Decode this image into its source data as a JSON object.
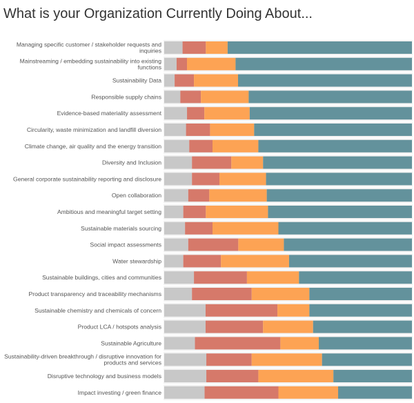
{
  "title": "What is your Organization Currently Doing About...",
  "chart_data": {
    "type": "bar",
    "orientation": "horizontal",
    "stacked": true,
    "normalized_percent": true,
    "title": "What is your Organization Currently Doing About...",
    "xlim": [
      0,
      100
    ],
    "grid": false,
    "legend": "none",
    "colors": [
      "#c8c8c8",
      "#d6796a",
      "#fda354",
      "#63929c"
    ],
    "categories": [
      [
        "Managing specific customer / stakeholder requests and",
        "inquiries"
      ],
      [
        "Mainstreaming / embedding sustainability into existing",
        "functions"
      ],
      [
        "Sustainability Data"
      ],
      [
        "Responsible supply chains"
      ],
      [
        "Evidence-based materiality assessment"
      ],
      [
        "Circularity, waste minimization and landfill diversion"
      ],
      [
        "Climate change, air quality and the energy transition"
      ],
      [
        "Diversity and Inclusion"
      ],
      [
        "General corporate sustainability reporting and disclosure"
      ],
      [
        "Open collaboration"
      ],
      [
        "Ambitious and meaningful target setting"
      ],
      [
        "Sustainable materials sourcing"
      ],
      [
        "Social impact assessments"
      ],
      [
        "Water stewardship"
      ],
      [
        "Sustainable buildings, cities and communities"
      ],
      [
        "Product transparency and traceability mechanisms"
      ],
      [
        "Sustainable chemistry and chemicals of concern"
      ],
      [
        "Product LCA / hotspots analysis"
      ],
      [
        "Sustainable Agriculture"
      ],
      [
        "Sustainability-driven breakthrough / disruptive innovation for",
        "products and services"
      ],
      [
        "Disruptive technology and business models"
      ],
      [
        "Impact investing / green finance"
      ]
    ],
    "series": [
      {
        "values": [
          7.4,
          5.0,
          4.2,
          6.5,
          9.2,
          8.8,
          10.1,
          11.2,
          11.2,
          9.7,
          7.7,
          8.4,
          9.7,
          7.7,
          12.0,
          11.2,
          16.7,
          16.7,
          12.4,
          17.0,
          17.0,
          16.3
        ]
      },
      {
        "values": [
          9.4,
          4.2,
          7.8,
          8.3,
          7.0,
          9.7,
          9.4,
          15.9,
          11.1,
          8.5,
          9.1,
          11.1,
          20.2,
          15.2,
          21.4,
          24.1,
          29.0,
          23.2,
          34.5,
          18.3,
          21.0,
          29.8
        ]
      },
      {
        "values": [
          8.8,
          19.6,
          17.8,
          19.3,
          18.3,
          17.8,
          18.5,
          12.8,
          18.8,
          23.2,
          25.1,
          26.6,
          18.4,
          27.5,
          21.0,
          23.3,
          12.9,
          20.2,
          15.5,
          28.4,
          30.3,
          24.1
        ]
      },
      {
        "values": [
          74.4,
          71.2,
          70.2,
          65.9,
          65.5,
          63.7,
          62.0,
          60.1,
          58.9,
          58.6,
          58.1,
          53.9,
          51.7,
          49.6,
          45.6,
          41.4,
          41.4,
          39.9,
          37.6,
          36.3,
          31.7,
          29.8
        ]
      }
    ]
  }
}
